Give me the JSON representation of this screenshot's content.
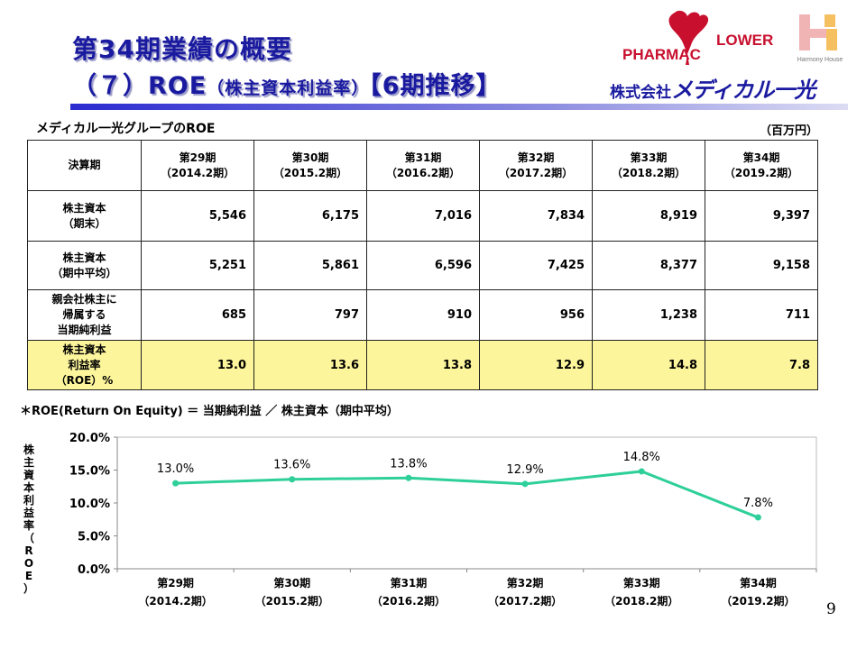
{
  "header": {
    "title_line1": "第34期業績の概要",
    "title_line2_main": "（７）ROE",
    "title_line2_sub": "（株主資本利益率）",
    "title_line2_tail": "【6期推移】",
    "company_prefix": "株式会社",
    "company_name": "メディカル一光",
    "logo_pharmac": "PHARMAC",
    "logo_flower": "LOWER",
    "logo_harmony": "Harmony House"
  },
  "table": {
    "title": "メディカル一光グループのROE",
    "unit": "（百万円）",
    "corner_label": "決算期",
    "periods": [
      {
        "name": "第29期",
        "sub": "（2014.2期）"
      },
      {
        "name": "第30期",
        "sub": "（2015.2期）"
      },
      {
        "name": "第31期",
        "sub": "（2016.2期）"
      },
      {
        "name": "第32期",
        "sub": "（2017.2期）"
      },
      {
        "name": "第33期",
        "sub": "（2018.2期）"
      },
      {
        "name": "第34期",
        "sub": "（2019.2期）"
      }
    ],
    "rows": [
      {
        "label": [
          "株主資本",
          "（期末）"
        ],
        "values": [
          "5,546",
          "6,175",
          "7,016",
          "7,834",
          "8,919",
          "9,397"
        ]
      },
      {
        "label": [
          "株主資本",
          "（期中平均）"
        ],
        "values": [
          "5,251",
          "5,861",
          "6,596",
          "7,425",
          "8,377",
          "9,158"
        ]
      },
      {
        "label": [
          "親会社株主に",
          "帰属する",
          "当期純利益"
        ],
        "values": [
          "685",
          "797",
          "910",
          "956",
          "1,238",
          "711"
        ]
      },
      {
        "label": [
          "株主資本",
          "利益率",
          "（ROE）%"
        ],
        "values": [
          "13.0",
          "13.6",
          "13.8",
          "12.9",
          "14.8",
          "7.8"
        ]
      }
    ]
  },
  "formula": "＊ROE(Return On Equity) ＝ 当期純利益 ／ 株主資本（期中平均）",
  "page_number": "9",
  "colors": {
    "title": "#1a1aa0",
    "line": "#2ecf9a",
    "highlight_row": "#fcf59c"
  },
  "chart_data": {
    "type": "line",
    "categories": [
      "第29期",
      "第30期",
      "第31期",
      "第32期",
      "第33期",
      "第34期"
    ],
    "category_sub": [
      "（2014.2期）",
      "（2015.2期）",
      "（2016.2期）",
      "（2017.2期）",
      "（2018.2期）",
      "（2019.2期）"
    ],
    "series": [
      {
        "values": [
          13.0,
          13.6,
          13.8,
          12.9,
          14.8,
          7.8
        ]
      }
    ],
    "data_labels": [
      "13.0%",
      "13.6%",
      "13.8%",
      "12.9%",
      "14.8%",
      "7.8%"
    ],
    "ylabel": "株主資本利益率（ROE）",
    "ylim": [
      0,
      20
    ],
    "yticks": [
      0,
      5,
      10,
      15,
      20
    ],
    "ytick_labels": [
      "0.0%",
      "5.0%",
      "10.0%",
      "15.0%",
      "20.0%"
    ],
    "grid": false,
    "legend": "none"
  }
}
